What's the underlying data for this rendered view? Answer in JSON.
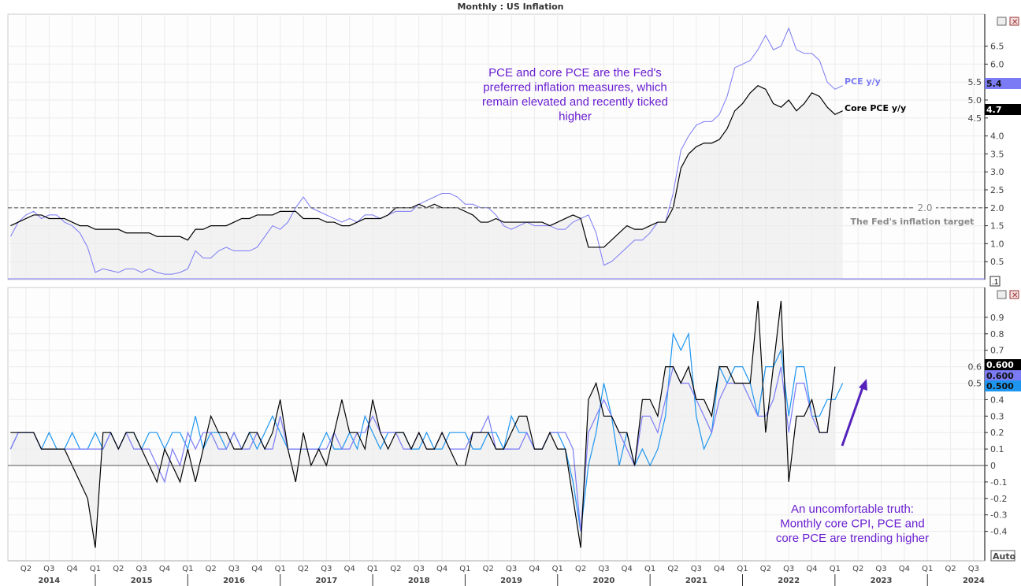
{
  "title": "Monthly : US Inflation",
  "chart_data": [
    {
      "type": "line",
      "start_month": "2014-02",
      "ylim": [
        0,
        7
      ],
      "yticks": [
        0.5,
        1.0,
        1.5,
        2.0,
        2.5,
        3.0,
        3.5,
        4.0,
        4.5,
        5.0,
        5.5,
        6.0,
        6.5
      ],
      "series": [
        {
          "name": "PCE y/y",
          "color": "#7b7bf5",
          "last_label": "5.4",
          "values": [
            1.2,
            1.6,
            1.8,
            1.9,
            1.7,
            1.8,
            1.8,
            1.6,
            1.5,
            1.3,
            0.9,
            0.2,
            0.3,
            0.25,
            0.2,
            0.3,
            0.3,
            0.2,
            0.3,
            0.2,
            0.15,
            0.15,
            0.2,
            0.3,
            0.8,
            0.6,
            0.6,
            0.8,
            0.9,
            0.8,
            0.8,
            0.8,
            0.9,
            1.2,
            1.5,
            1.4,
            1.6,
            2.0,
            2.3,
            2.0,
            1.9,
            1.8,
            1.7,
            1.6,
            1.7,
            1.6,
            1.8,
            1.8,
            1.7,
            1.8,
            1.9,
            1.9,
            1.9,
            2.1,
            2.2,
            2.3,
            2.4,
            2.4,
            2.3,
            2.1,
            2.1,
            2.0,
            2.0,
            1.8,
            1.5,
            1.4,
            1.5,
            1.6,
            1.5,
            1.5,
            1.5,
            1.4,
            1.4,
            1.6,
            1.7,
            1.8,
            1.3,
            0.4,
            0.5,
            0.7,
            0.9,
            1.1,
            1.1,
            1.3,
            1.6,
            1.6,
            2.4,
            3.6,
            4.0,
            4.3,
            4.4,
            4.4,
            4.6,
            5.1,
            5.9,
            6.0,
            6.1,
            6.4,
            6.8,
            6.4,
            6.5,
            7.0,
            6.4,
            6.3,
            6.3,
            6.1,
            5.5,
            5.3,
            5.4
          ]
        },
        {
          "name": "Core PCE y/y",
          "color": "#000000",
          "last_label": "4.7",
          "values": [
            1.5,
            1.6,
            1.7,
            1.8,
            1.8,
            1.7,
            1.7,
            1.7,
            1.6,
            1.5,
            1.5,
            1.4,
            1.4,
            1.4,
            1.4,
            1.3,
            1.3,
            1.3,
            1.3,
            1.2,
            1.2,
            1.2,
            1.2,
            1.1,
            1.4,
            1.4,
            1.5,
            1.5,
            1.5,
            1.6,
            1.7,
            1.7,
            1.8,
            1.8,
            1.8,
            1.9,
            1.9,
            1.9,
            1.7,
            1.7,
            1.7,
            1.6,
            1.6,
            1.5,
            1.5,
            1.6,
            1.7,
            1.7,
            1.7,
            1.8,
            2.0,
            2.0,
            2.0,
            2.1,
            2.0,
            2.1,
            2.0,
            2.0,
            2.0,
            1.9,
            1.8,
            1.6,
            1.6,
            1.7,
            1.6,
            1.6,
            1.6,
            1.6,
            1.6,
            1.6,
            1.5,
            1.6,
            1.7,
            1.8,
            1.7,
            0.9,
            0.9,
            0.9,
            1.1,
            1.3,
            1.5,
            1.4,
            1.4,
            1.5,
            1.6,
            1.6,
            2.0,
            3.1,
            3.5,
            3.7,
            3.8,
            3.8,
            3.9,
            4.2,
            4.7,
            4.9,
            5.2,
            5.4,
            5.3,
            4.9,
            4.8,
            5.0,
            4.7,
            4.9,
            5.2,
            5.1,
            4.8,
            4.6,
            4.7
          ]
        }
      ],
      "reference_line": {
        "value": 2.0,
        "label": "2.0",
        "annotation": "The Fed's inflation target"
      },
      "annotation": [
        "PCE and core PCE are the Fed's",
        "preferred inflation measures, which",
        "remain elevated and recently ticked",
        "higher"
      ]
    },
    {
      "type": "line",
      "start_month": "2014-02",
      "ylim": [
        -0.5,
        1.0
      ],
      "yticks": [
        -0.4,
        -0.3,
        -0.2,
        -0.1,
        0,
        0.1,
        0.2,
        0.3,
        0.4,
        0.5,
        0.6,
        0.7,
        0.8,
        0.9
      ],
      "series": [
        {
          "color": "#000000",
          "last_label": "0.600",
          "values": [
            0.2,
            0.2,
            0.2,
            0.2,
            0.1,
            0.1,
            0.1,
            0.1,
            0.0,
            -0.1,
            -0.2,
            -0.5,
            0.2,
            0.2,
            0.1,
            0.2,
            0.2,
            0.1,
            0.0,
            -0.1,
            0.1,
            0.0,
            -0.1,
            0.1,
            -0.1,
            0.1,
            0.3,
            0.2,
            0.2,
            0.1,
            0.1,
            0.2,
            0.2,
            0.1,
            0.2,
            0.4,
            0.1,
            -0.1,
            0.2,
            0.0,
            0.1,
            0.0,
            0.2,
            0.4,
            0.2,
            0.2,
            0.1,
            0.4,
            0.2,
            0.1,
            0.2,
            0.2,
            0.1,
            0.2,
            0.1,
            0.1,
            0.2,
            0.1,
            0.0,
            0.0,
            0.2,
            0.2,
            0.2,
            0.1,
            0.1,
            0.2,
            0.3,
            0.3,
            0.1,
            0.1,
            0.2,
            0.1,
            0.1,
            -0.2,
            -0.5,
            0.4,
            0.5,
            0.3,
            0.3,
            0.2,
            0.2,
            0.0,
            0.4,
            0.4,
            0.3,
            0.6,
            0.6,
            0.5,
            0.6,
            0.4,
            0.4,
            0.3,
            0.6,
            0.6,
            0.5,
            0.5,
            0.5,
            1.0,
            0.2,
            0.6,
            1.0,
            -0.1,
            0.3,
            0.3,
            0.4,
            0.2,
            0.2,
            0.6
          ]
        },
        {
          "color": "#7b7bf5",
          "last_label": "0.600",
          "values": [
            0.1,
            0.2,
            0.2,
            0.2,
            0.1,
            0.1,
            0.1,
            0.1,
            0.1,
            0.1,
            0.1,
            0.1,
            0.1,
            0.2,
            0.1,
            0.2,
            0.1,
            0.1,
            0.1,
            0.0,
            -0.1,
            0.1,
            0.0,
            0.2,
            0.1,
            0.2,
            0.2,
            0.1,
            0.1,
            0.2,
            0.1,
            0.1,
            0.2,
            0.1,
            0.1,
            0.3,
            0.1,
            0.1,
            0.1,
            0.1,
            0.1,
            0.1,
            0.2,
            0.1,
            0.1,
            0.2,
            0.2,
            0.3,
            0.2,
            0.2,
            0.2,
            0.1,
            0.1,
            0.2,
            0.1,
            0.1,
            0.2,
            0.1,
            0.1,
            0.1,
            0.2,
            0.2,
            0.3,
            0.1,
            0.1,
            0.1,
            0.1,
            0.2,
            0.1,
            0.1,
            0.2,
            0.2,
            0.2,
            0.1,
            -0.4,
            0.2,
            0.3,
            0.4,
            0.3,
            0.2,
            0.1,
            0.0,
            0.3,
            0.3,
            0.2,
            0.4,
            0.6,
            0.5,
            0.5,
            0.4,
            0.3,
            0.2,
            0.4,
            0.5,
            0.5,
            0.5,
            0.4,
            0.3,
            0.3,
            0.4,
            0.6,
            0.2,
            0.5,
            0.5,
            0.3,
            0.2,
            0.2,
            0.6
          ]
        },
        {
          "color": "#1e96f0",
          "last_label": "0.500",
          "values": [
            0.1,
            0.2,
            0.2,
            0.2,
            0.1,
            0.2,
            0.1,
            0.1,
            0.2,
            0.1,
            0.1,
            0.2,
            0.1,
            0.2,
            0.1,
            0.2,
            0.2,
            0.1,
            0.2,
            0.2,
            0.1,
            0.2,
            0.2,
            0.1,
            0.3,
            0.1,
            0.2,
            0.2,
            0.1,
            0.2,
            0.1,
            0.2,
            0.1,
            0.2,
            0.3,
            0.2,
            0.1,
            0.1,
            0.1,
            0.1,
            0.1,
            0.2,
            0.1,
            0.1,
            0.2,
            0.1,
            0.3,
            0.2,
            0.1,
            0.2,
            0.2,
            0.2,
            0.1,
            0.1,
            0.2,
            0.1,
            0.1,
            0.2,
            0.2,
            0.2,
            0.1,
            0.1,
            0.2,
            0.2,
            0.1,
            0.3,
            0.2,
            0.2,
            0.1,
            0.1,
            0.2,
            0.2,
            0.1,
            -0.1,
            -0.4,
            0.0,
            0.2,
            0.5,
            0.3,
            0.0,
            0.2,
            0.0,
            0.1,
            0.0,
            0.1,
            0.3,
            0.8,
            0.7,
            0.8,
            0.3,
            0.1,
            0.2,
            0.6,
            0.5,
            0.6,
            0.6,
            0.5,
            0.3,
            0.6,
            0.6,
            0.7,
            0.3,
            0.6,
            0.6,
            0.3,
            0.3,
            0.4,
            0.4,
            0.5
          ]
        }
      ],
      "annotation": [
        "An uncomfortable truth:",
        "Monthly core CPI, PCE and",
        "core PCE are trending higher"
      ]
    }
  ],
  "x_axis": {
    "quarters": [
      "Q1",
      "Q2",
      "Q3",
      "Q4"
    ],
    "years": [
      "2014",
      "2015",
      "2016",
      "2017",
      "2018",
      "2019",
      "2020",
      "2021",
      "2022",
      "2023",
      "2024"
    ]
  },
  "controls": {
    "auto": "Auto",
    "scale_box": ".1"
  }
}
